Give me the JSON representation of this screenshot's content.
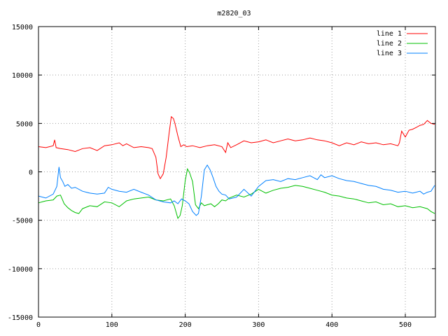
{
  "chart_data": {
    "type": "line",
    "title": "m2820_03",
    "xlabel": "",
    "ylabel": "",
    "xlim": [
      0,
      541
    ],
    "ylim": [
      -15000,
      15000
    ],
    "xticks": [
      0,
      100,
      200,
      300,
      400,
      500
    ],
    "yticks": [
      -15000,
      -10000,
      -5000,
      0,
      5000,
      10000,
      15000
    ],
    "grid": true,
    "legend_position": "top-right",
    "series": [
      {
        "name": "line 1",
        "color": "#ff0000",
        "x": [
          0,
          10,
          20,
          22,
          24,
          30,
          40,
          50,
          60,
          70,
          80,
          90,
          100,
          110,
          115,
          120,
          130,
          140,
          150,
          155,
          160,
          163,
          166,
          170,
          174,
          178,
          181,
          184,
          186,
          190,
          194,
          198,
          202,
          210,
          220,
          230,
          240,
          250,
          255,
          258,
          262,
          270,
          280,
          290,
          300,
          310,
          320,
          330,
          340,
          350,
          360,
          370,
          380,
          390,
          400,
          410,
          420,
          430,
          440,
          450,
          460,
          470,
          480,
          490,
          492,
          495,
          500,
          505,
          510,
          515,
          520,
          525,
          530,
          535,
          540
        ],
        "y": [
          2600,
          2500,
          2700,
          3300,
          2500,
          2400,
          2300,
          2100,
          2400,
          2500,
          2200,
          2700,
          2800,
          3000,
          2700,
          2900,
          2500,
          2600,
          2500,
          2400,
          1500,
          -200,
          -700,
          -200,
          1500,
          4000,
          5700,
          5500,
          5000,
          3700,
          2600,
          2800,
          2600,
          2700,
          2500,
          2700,
          2800,
          2600,
          2000,
          3000,
          2500,
          2800,
          3200,
          3000,
          3100,
          3300,
          3000,
          3200,
          3400,
          3200,
          3300,
          3500,
          3300,
          3200,
          3000,
          2700,
          3000,
          2800,
          3100,
          2900,
          3000,
          2800,
          2900,
          2700,
          3000,
          4200,
          3600,
          4300,
          4400,
          4600,
          4800,
          4900,
          5300,
          5000,
          4900
        ]
      },
      {
        "name": "line 2",
        "color": "#00c000",
        "x": [
          0,
          5,
          10,
          20,
          25,
          30,
          35,
          40,
          45,
          50,
          55,
          60,
          70,
          80,
          90,
          100,
          110,
          120,
          130,
          140,
          150,
          160,
          170,
          180,
          185,
          190,
          193,
          196,
          200,
          203,
          206,
          210,
          214,
          218,
          222,
          226,
          230,
          235,
          240,
          245,
          250,
          255,
          260,
          270,
          280,
          290,
          300,
          310,
          320,
          330,
          340,
          350,
          360,
          370,
          380,
          390,
          400,
          410,
          420,
          430,
          440,
          450,
          460,
          470,
          480,
          490,
          500,
          510,
          520,
          530,
          535,
          540
        ],
        "y": [
          -3200,
          -3100,
          -3000,
          -2900,
          -2500,
          -2400,
          -3300,
          -3700,
          -4000,
          -4200,
          -4300,
          -3800,
          -3500,
          -3600,
          -3100,
          -3200,
          -3600,
          -3000,
          -2800,
          -2700,
          -2600,
          -2900,
          -3000,
          -2800,
          -3500,
          -4800,
          -4500,
          -3500,
          -900,
          300,
          -100,
          -1000,
          -3400,
          -3800,
          -3200,
          -3500,
          -3400,
          -3300,
          -3600,
          -3300,
          -2900,
          -3000,
          -2700,
          -2400,
          -2600,
          -2300,
          -1800,
          -2200,
          -1900,
          -1700,
          -1600,
          -1400,
          -1500,
          -1700,
          -1900,
          -2100,
          -2400,
          -2500,
          -2700,
          -2800,
          -3000,
          -3200,
          -3100,
          -3400,
          -3300,
          -3600,
          -3500,
          -3700,
          -3600,
          -3800,
          -4100,
          -4300
        ]
      },
      {
        "name": "line 3",
        "color": "#0080ff",
        "x": [
          0,
          10,
          20,
          25,
          28,
          30,
          33,
          36,
          40,
          45,
          50,
          60,
          70,
          80,
          90,
          95,
          100,
          110,
          120,
          130,
          140,
          150,
          160,
          170,
          180,
          185,
          190,
          195,
          200,
          205,
          210,
          215,
          218,
          222,
          226,
          230,
          234,
          238,
          242,
          246,
          250,
          255,
          260,
          270,
          280,
          290,
          300,
          310,
          320,
          330,
          340,
          350,
          360,
          370,
          380,
          385,
          390,
          400,
          410,
          420,
          430,
          440,
          450,
          460,
          470,
          480,
          490,
          500,
          510,
          520,
          525,
          530,
          535,
          540
        ],
        "y": [
          -2500,
          -2700,
          -2300,
          -1500,
          500,
          -600,
          -1000,
          -1500,
          -1300,
          -1700,
          -1600,
          -2000,
          -2200,
          -2300,
          -2200,
          -1600,
          -1800,
          -2000,
          -2100,
          -1800,
          -2100,
          -2400,
          -2900,
          -3100,
          -3200,
          -3000,
          -3300,
          -2800,
          -3000,
          -3300,
          -4100,
          -4500,
          -4300,
          -2500,
          200,
          700,
          200,
          -600,
          -1500,
          -2000,
          -2300,
          -2400,
          -2800,
          -2600,
          -1800,
          -2500,
          -1500,
          -900,
          -800,
          -1000,
          -700,
          -800,
          -600,
          -400,
          -800,
          -300,
          -600,
          -400,
          -700,
          -900,
          -1000,
          -1200,
          -1400,
          -1500,
          -1800,
          -1900,
          -2100,
          -2000,
          -2200,
          -2000,
          -2300,
          -2100,
          -2000,
          -1400
        ]
      }
    ]
  }
}
